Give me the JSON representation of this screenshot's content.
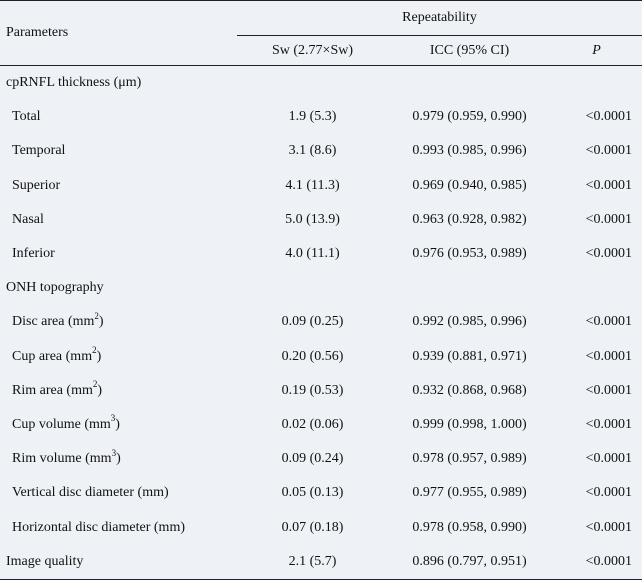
{
  "header": {
    "parameters": "Parameters",
    "group": "Repeatability",
    "col_sw": "Sw (2.77×Sw)",
    "col_icc": "ICC (95% CI)",
    "col_p": "P"
  },
  "sections": {
    "rnfl": "cpRNFL thickness (μm)",
    "onh": "ONH topography"
  },
  "rnfl_rows": [
    {
      "label": "Total",
      "sw": "1.9 (5.3)",
      "icc": "0.979 (0.959, 0.990)",
      "p": "<0.0001"
    },
    {
      "label": "Temporal",
      "sw": "3.1 (8.6)",
      "icc": "0.993 (0.985, 0.996)",
      "p": "<0.0001"
    },
    {
      "label": "Superior",
      "sw": "4.1 (11.3)",
      "icc": "0.969 (0.940, 0.985)",
      "p": "<0.0001"
    },
    {
      "label": "Nasal",
      "sw": "5.0 (13.9)",
      "icc": "0.963 (0.928, 0.982)",
      "p": "<0.0001"
    },
    {
      "label": "Inferior",
      "sw": "4.0 (11.1)",
      "icc": "0.976 (0.953, 0.989)",
      "p": "<0.0001"
    }
  ],
  "onh_rows": [
    {
      "label": "Disc area (mm",
      "sup": "2",
      "tail": ")",
      "sw": "0.09 (0.25)",
      "icc": "0.992 (0.985, 0.996)",
      "p": "<0.0001"
    },
    {
      "label": "Cup area (mm",
      "sup": "2",
      "tail": ")",
      "sw": "0.20 (0.56)",
      "icc": "0.939 (0.881, 0.971)",
      "p": "<0.0001"
    },
    {
      "label": "Rim area (mm",
      "sup": "2",
      "tail": ")",
      "sw": "0.19 (0.53)",
      "icc": "0.932 (0.868, 0.968)",
      "p": "<0.0001"
    },
    {
      "label": "Cup volume (mm",
      "sup": "3",
      "tail": ")",
      "sw": "0.02 (0.06)",
      "icc": "0.999 (0.998, 1.000)",
      "p": "<0.0001"
    },
    {
      "label": "Rim volume (mm",
      "sup": "3",
      "tail": ")",
      "sw": "0.09 (0.24)",
      "icc": "0.978 (0.957, 0.989)",
      "p": "<0.0001"
    },
    {
      "label": "Vertical disc diameter (mm)",
      "sup": "",
      "tail": "",
      "sw": "0.05 (0.13)",
      "icc": "0.977 (0.955, 0.989)",
      "p": "<0.0001"
    },
    {
      "label": "Horizontal disc diameter (mm)",
      "sup": "",
      "tail": "",
      "sw": "0.07 (0.18)",
      "icc": "0.978 (0.958, 0.990)",
      "p": "<0.0001"
    }
  ],
  "image_quality": {
    "label": "Image quality",
    "sw": "2.1 (5.7)",
    "icc": "0.896 (0.797, 0.951)",
    "p": "<0.0001"
  }
}
